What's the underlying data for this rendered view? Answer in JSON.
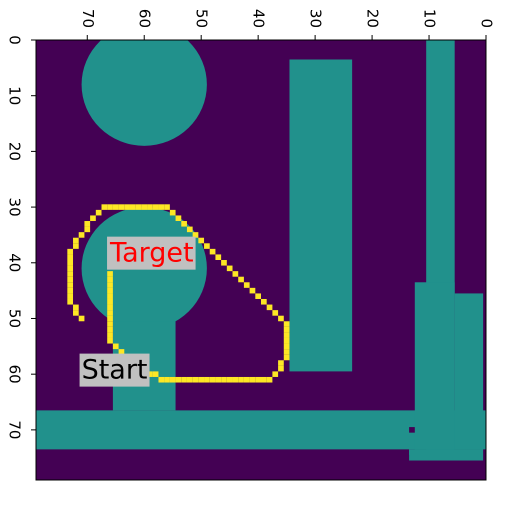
{
  "chart_data": {
    "type": "heatmap",
    "title": "",
    "xlabel": "",
    "ylabel": "",
    "grid": false,
    "x_axis": {
      "position": "top",
      "inverted": true,
      "xlim": [
        79,
        0
      ],
      "ticks": [
        0,
        10,
        20,
        30,
        40,
        50,
        60,
        70
      ]
    },
    "y_axis": {
      "position": "left",
      "inverted": true,
      "ylim": [
        0,
        79
      ],
      "ticks": [
        0,
        10,
        20,
        30,
        40,
        50,
        60,
        70
      ]
    },
    "colors": {
      "background": "#440154",
      "obstacle": "#21918c",
      "path": "#fde725",
      "label_box": "#c0c0c0"
    },
    "obstacles": [
      {
        "shape": "circle",
        "center_x": 60,
        "center_y": 8,
        "radius": 11
      },
      {
        "shape": "rect",
        "x_range": [
          23.5,
          34.5
        ],
        "y_range": [
          3.5,
          59.5
        ]
      },
      {
        "shape": "circle",
        "center_x": 60,
        "center_y": 41,
        "radius": 11
      },
      {
        "shape": "rect",
        "x_range": [
          54.5,
          65.5
        ],
        "y_range": [
          50.5,
          66.5
        ]
      },
      {
        "shape": "rect",
        "x_range": [
          -0.5,
          79.5
        ],
        "y_range": [
          66.5,
          73.5
        ]
      },
      {
        "shape": "rect",
        "x_range": [
          5.5,
          10.5
        ],
        "y_range": [
          -0.5,
          73.5
        ]
      },
      {
        "shape": "rect",
        "x_range": [
          5.5,
          12.5
        ],
        "y_range": [
          43.5,
          73.5
        ]
      },
      {
        "shape": "rect",
        "x_range": [
          0.5,
          5.5
        ],
        "y_range": [
          45.5,
          73.5
        ]
      },
      {
        "shape": "rect",
        "x_range": [
          10.5,
          13.5
        ],
        "y_range": [
          73.5,
          74.5
        ]
      },
      {
        "shape": "rect",
        "x_range": [
          0.5,
          13.5
        ],
        "y_range": [
          73.5,
          75.5
        ]
      }
    ],
    "path": [
      [
        71,
        50
      ],
      [
        72,
        49
      ],
      [
        72,
        48
      ],
      [
        73,
        47
      ],
      [
        73,
        46
      ],
      [
        73,
        45
      ],
      [
        73,
        44
      ],
      [
        73,
        43
      ],
      [
        73,
        42
      ],
      [
        73,
        41
      ],
      [
        73,
        40
      ],
      [
        73,
        39
      ],
      [
        73,
        38
      ],
      [
        72,
        37
      ],
      [
        72,
        36
      ],
      [
        71,
        35
      ],
      [
        70,
        34
      ],
      [
        70,
        33
      ],
      [
        69,
        32
      ],
      [
        68,
        31
      ],
      [
        67,
        30
      ],
      [
        66,
        30
      ],
      [
        65,
        30
      ],
      [
        64,
        30
      ],
      [
        63,
        30
      ],
      [
        62,
        30
      ],
      [
        61,
        30
      ],
      [
        60,
        30
      ],
      [
        59,
        30
      ],
      [
        58,
        30
      ],
      [
        57,
        30
      ],
      [
        56,
        30
      ],
      [
        55,
        31
      ],
      [
        54,
        32
      ],
      [
        53,
        33
      ],
      [
        52,
        34
      ],
      [
        51,
        35
      ],
      [
        50,
        36
      ],
      [
        49,
        37
      ],
      [
        48,
        38
      ],
      [
        47,
        39
      ],
      [
        46,
        40
      ],
      [
        45,
        41
      ],
      [
        44,
        42
      ],
      [
        43,
        43
      ],
      [
        42,
        44
      ],
      [
        41,
        45
      ],
      [
        40,
        46
      ],
      [
        39,
        47
      ],
      [
        38,
        48
      ],
      [
        37,
        49
      ],
      [
        36,
        50
      ],
      [
        35,
        51
      ],
      [
        35,
        52
      ],
      [
        35,
        53
      ],
      [
        35,
        54
      ],
      [
        35,
        55
      ],
      [
        35,
        56
      ],
      [
        35,
        57
      ],
      [
        36,
        58
      ],
      [
        36,
        59
      ],
      [
        37,
        60
      ],
      [
        38,
        61
      ],
      [
        39,
        61
      ],
      [
        40,
        61
      ],
      [
        41,
        61
      ],
      [
        42,
        61
      ],
      [
        43,
        61
      ],
      [
        44,
        61
      ],
      [
        45,
        61
      ],
      [
        46,
        61
      ],
      [
        47,
        61
      ],
      [
        48,
        61
      ],
      [
        49,
        61
      ],
      [
        50,
        61
      ],
      [
        51,
        61
      ],
      [
        52,
        61
      ],
      [
        53,
        61
      ],
      [
        54,
        61
      ],
      [
        55,
        61
      ],
      [
        56,
        61
      ],
      [
        57,
        61
      ],
      [
        58,
        60
      ],
      [
        59,
        60
      ],
      [
        60,
        60
      ],
      [
        61,
        59
      ],
      [
        62,
        58
      ],
      [
        63,
        57
      ],
      [
        64,
        56
      ],
      [
        65,
        55
      ],
      [
        66,
        54
      ],
      [
        66,
        53
      ],
      [
        66,
        52
      ],
      [
        66,
        51
      ],
      [
        66,
        50
      ],
      [
        66,
        49
      ],
      [
        66,
        48
      ],
      [
        66,
        47
      ],
      [
        66,
        46
      ],
      [
        66,
        45
      ],
      [
        66,
        44
      ],
      [
        66,
        43
      ],
      [
        66,
        42
      ]
    ],
    "annotations": [
      {
        "text": "Start",
        "x": 71,
        "y": 59,
        "color": "#000000"
      },
      {
        "text": "Target",
        "x": 66,
        "y": 38,
        "color": "#ff0000"
      }
    ]
  }
}
